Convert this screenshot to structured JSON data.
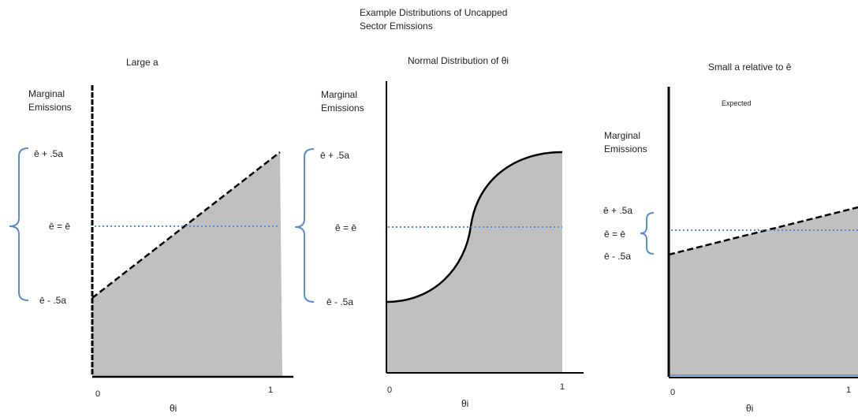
{
  "title_line1": "Example Distributions of Uncapped",
  "title_line2": "Sector Emissions",
  "panels": [
    {
      "title": "Large a",
      "ylabel_line1": "Marginal",
      "ylabel_line2": "Emissions",
      "upper_label": "ē + .5a",
      "mid_label": "ê = ē",
      "lower_label": "ē - .5a",
      "x_start": "0",
      "x_end": "1",
      "xlabel": "θi"
    },
    {
      "title": "Normal Distribution of θi",
      "ylabel_line1": "Marginal",
      "ylabel_line2": "Emissions",
      "upper_label": "ē + .5a",
      "mid_label": "ê = ē",
      "lower_label": "ē - .5a",
      "x_start": "0",
      "x_end": "1",
      "xlabel": "θi"
    },
    {
      "title": "Small a relative to ê",
      "annotation": "Expected",
      "ylabel_line1": "Marginal",
      "ylabel_line2": "Emissions",
      "upper_label": "ē + .5a",
      "mid_label": "ê = ē",
      "lower_label": "ē - .5a",
      "x_start": "0",
      "x_end": "1",
      "xlabel": "θi"
    }
  ],
  "colors": {
    "fill": "#c0c0c0",
    "axis": "#000000",
    "brace": "#5b8ccc",
    "dotted": "#5b8ccc"
  }
}
